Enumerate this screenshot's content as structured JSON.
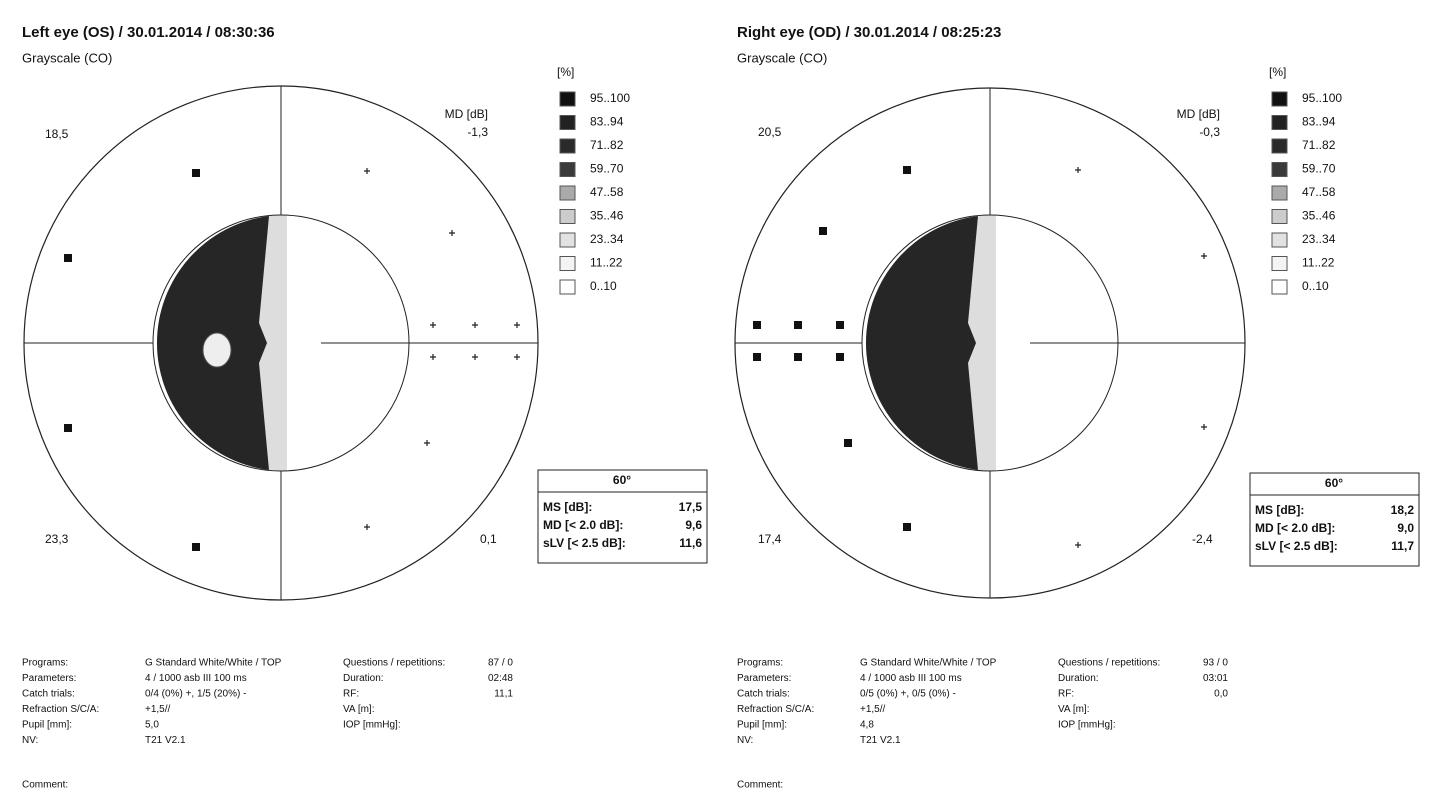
{
  "panels": [
    {
      "title": "Left eye (OS) / 30.01.2014 / 08:30:36",
      "subtitle": "Grayscale (CO)",
      "legend_header": "[%]",
      "legend": [
        "95..100",
        "83..94",
        "71..82",
        "59..70",
        "47..58",
        "35..46",
        "23..34",
        "11..22",
        "0..10"
      ],
      "md_label": "MD [dB]",
      "md_value": "-1,3",
      "quadrants": {
        "upper_left": "18,5",
        "lower_left": "23,3",
        "lower_right": "0,1"
      },
      "stats": {
        "header": "60°",
        "rows": [
          [
            "MS [dB]:",
            "17,5"
          ],
          [
            "MD [< 2.0 dB]:",
            "9,6"
          ],
          [
            "sLV [< 2.5 dB]:",
            "11,6"
          ]
        ]
      },
      "params": [
        {
          "label": "Programs:",
          "value": "G Standard   White/White / TOP"
        },
        {
          "label": "Parameters:",
          "value": "4  / 1000 asb III 100 ms"
        },
        {
          "label": "Catch trials:",
          "value": "0/4 (0%) +, 1/5 (20%) -"
        },
        {
          "label": "Refraction S/C/A:",
          "value": "+1,5//"
        },
        {
          "label": "Pupil [mm]:",
          "value": "5,0"
        },
        {
          "label": "NV:",
          "value": "T21 V2.1"
        }
      ],
      "params2": [
        {
          "label": "Questions / repetitions:",
          "value": "87 / 0"
        },
        {
          "label": "Duration:",
          "value": "02:48"
        },
        {
          "label": "RF:",
          "value": "11,1"
        },
        {
          "label": "VA [m]:"
        },
        {
          "label": "IOP [mmHg]:"
        }
      ],
      "comment": "Comment:"
    },
    {
      "title": "Right eye (OD) / 30.01.2014 / 08:25:23",
      "subtitle": "Grayscale (CO)",
      "legend_header": "[%]",
      "legend": [
        "95..100",
        "83..94",
        "71..82",
        "59..70",
        "47..58",
        "35..46",
        "23..34",
        "11..22",
        "0..10"
      ],
      "md_label": "MD [dB]",
      "md_value": "-0,3",
      "quadrants": {
        "upper_left": "20,5",
        "lower_left": "17,4",
        "lower_right": "-2,4"
      },
      "stats": {
        "header": "60°",
        "rows": [
          [
            "MS [dB]:",
            "18,2"
          ],
          [
            "MD [< 2.0 dB]:",
            "9,0"
          ],
          [
            "sLV [< 2.5 dB]:",
            "11,7"
          ]
        ]
      },
      "params": [
        {
          "label": "Programs:",
          "value": "G Standard   White/White / TOP"
        },
        {
          "label": "Parameters:",
          "value": "4  / 1000 asb III 100 ms"
        },
        {
          "label": "Catch trials:",
          "value": "0/5 (0%) +, 0/5 (0%) -"
        },
        {
          "label": "Refraction S/C/A:",
          "value": "+1,5//"
        },
        {
          "label": "Pupil [mm]:",
          "value": "4,8"
        },
        {
          "label": "NV:",
          "value": "T21 V2.1"
        }
      ],
      "params2": [
        {
          "label": "Questions / repetitions:",
          "value": "93 / 0"
        },
        {
          "label": "Duration:",
          "value": "03:01"
        },
        {
          "label": "RF:",
          "value": "0,0"
        },
        {
          "label": "VA [m]:"
        },
        {
          "label": "IOP [mmHg]:"
        }
      ],
      "comment": "Comment:"
    }
  ]
}
